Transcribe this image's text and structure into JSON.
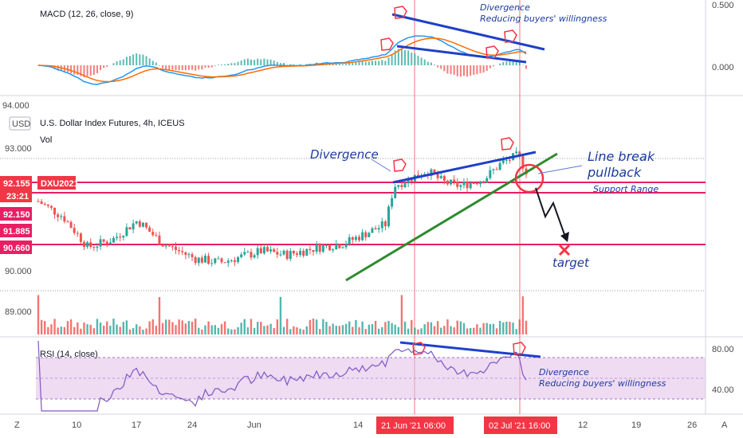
{
  "colors": {
    "up": "#26a69a",
    "down": "#ef5350",
    "macd_line": "#2196f3",
    "signal_line": "#ff6d00",
    "rsi_line": "#7e57c2",
    "rsi_band": "#e1bee7",
    "support_line": "#e91e63",
    "trend_blue": "#1e40c8",
    "trend_green": "#2e8b2e",
    "annotation": "#1b3a9e",
    "marker_red": "#f23645"
  },
  "macd_pane": {
    "title": "MACD (12, 26, close, 9)",
    "ticks": [
      "0.500",
      "0.000"
    ]
  },
  "price_pane": {
    "title": "U.S. Dollar Index Futures, 4h, ICEUS",
    "vol_label": "Vol",
    "currency": "USD",
    "ticks": [
      "94.000",
      "93.000",
      "90.000",
      "89.000"
    ],
    "tags": [
      {
        "label": "92.155",
        "color": "#f23645"
      },
      {
        "label": "23:21",
        "color": "#f23645"
      },
      {
        "label": "92.150",
        "color": "#e91e63"
      },
      {
        "label": "91.885",
        "color": "#e91e63"
      },
      {
        "label": "90.660",
        "color": "#e91e63"
      }
    ],
    "symbol_tag": "DXU2021"
  },
  "rsi_pane": {
    "title": "RSI (14, close)",
    "ticks": [
      "80.00",
      "40.00"
    ]
  },
  "time_axis": {
    "labels": [
      "Z",
      "10",
      "17",
      "24",
      "Jun",
      "14",
      "12",
      "19",
      "26",
      "A"
    ],
    "highlight_1": "21 Jun '21   06:00",
    "highlight_2": "02 Jul '21   16:00"
  },
  "annotations": {
    "macd_divergence": "Divergence",
    "macd_reducing": "Reducing buyers' willingness",
    "price_divergence": "Divergence",
    "line_break": "Line break",
    "pullback": "pullback",
    "support_range": "Support Range",
    "target": "target",
    "rsi_divergence": "Divergence",
    "rsi_reducing": "Reducing buyers' willingness"
  },
  "chart_data": {
    "type": "line",
    "instrument": "U.S. Dollar Index Futures, 4h, ICEUS",
    "ylim": [
      88.5,
      94.0
    ],
    "support_levels": [
      92.15,
      91.885,
      90.66
    ],
    "price_path_approx": [
      {
        "x": "2021-05-05",
        "y": 91.4
      },
      {
        "x": "2021-05-08",
        "y": 91.0
      },
      {
        "x": "2021-05-11",
        "y": 90.2
      },
      {
        "x": "2021-05-14",
        "y": 90.4
      },
      {
        "x": "2021-05-17",
        "y": 90.9
      },
      {
        "x": "2021-05-20",
        "y": 90.3
      },
      {
        "x": "2021-05-24",
        "y": 89.9
      },
      {
        "x": "2021-05-27",
        "y": 89.8
      },
      {
        "x": "2021-06-01",
        "y": 90.1
      },
      {
        "x": "2021-06-04",
        "y": 90.0
      },
      {
        "x": "2021-06-08",
        "y": 90.2
      },
      {
        "x": "2021-06-11",
        "y": 90.3
      },
      {
        "x": "2021-06-14",
        "y": 90.6
      },
      {
        "x": "2021-06-16",
        "y": 90.8
      },
      {
        "x": "2021-06-17",
        "y": 91.8
      },
      {
        "x": "2021-06-21",
        "y": 92.2
      },
      {
        "x": "2021-06-23",
        "y": 91.9
      },
      {
        "x": "2021-06-25",
        "y": 91.8
      },
      {
        "x": "2021-06-28",
        "y": 92.0
      },
      {
        "x": "2021-06-30",
        "y": 92.4
      },
      {
        "x": "2021-07-02",
        "y": 92.6
      },
      {
        "x": "2021-07-03",
        "y": 92.2
      }
    ],
    "rsi_scale": [
      40,
      80
    ],
    "rsi_band": [
      30,
      70
    ]
  }
}
